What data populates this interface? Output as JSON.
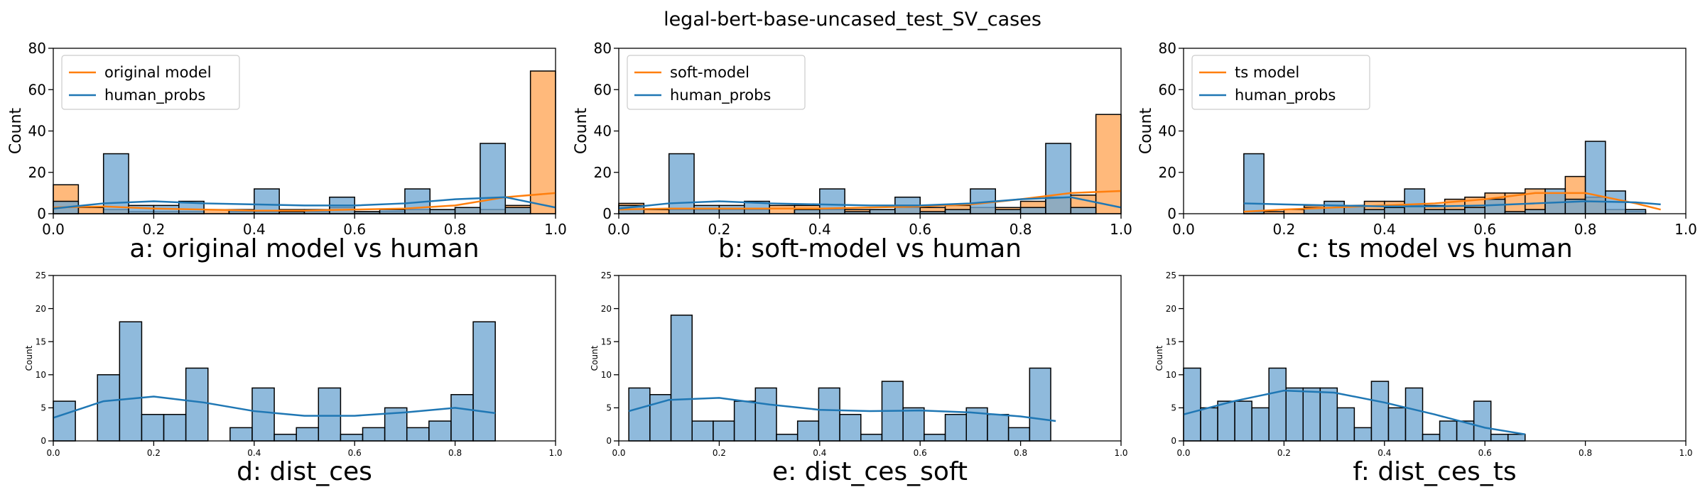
{
  "figure": {
    "title": "legal-bert-base-uncased_test_SV_cases"
  },
  "colors": {
    "human": "#1f77b4",
    "model": "#ff7f0e",
    "human_fill": "#6fa6d2",
    "model_fill": "#ffb574",
    "axis": "#000000"
  },
  "chart_data": [
    {
      "type": "bar",
      "panel": "a",
      "caption": "a: original model vs human",
      "xlabel": "",
      "ylabel": "Count",
      "xlim": [
        0,
        1
      ],
      "ylim": [
        0,
        80
      ],
      "xticks": [
        "0.0",
        "0.2",
        "0.4",
        "0.6",
        "0.8",
        "1.0"
      ],
      "yticks": [
        "0",
        "20",
        "40",
        "60",
        "80"
      ],
      "legend_position": "top-left",
      "legend": [
        "original model",
        "human_probs"
      ],
      "series": [
        {
          "name": "original model",
          "role": "model",
          "bins": [
            0,
            0.05,
            0.1,
            0.15,
            0.2,
            0.25,
            0.3,
            0.35,
            0.4,
            0.45,
            0.5,
            0.55,
            0.6,
            0.65,
            0.7,
            0.75,
            0.8,
            0.85,
            0.9,
            0.95,
            1.0
          ],
          "counts": [
            14,
            3,
            2,
            1,
            1,
            1,
            2,
            1,
            1,
            2,
            1,
            3,
            1,
            1,
            2,
            2,
            3,
            2,
            4,
            69
          ],
          "kde": {
            "x": [
              0,
              0.1,
              0.2,
              0.3,
              0.4,
              0.5,
              0.6,
              0.7,
              0.8,
              0.9,
              1.0
            ],
            "y": [
              3,
              3.5,
              2.5,
              2,
              1.5,
              1.5,
              2,
              2.5,
              4,
              8,
              10
            ]
          }
        },
        {
          "name": "human_probs",
          "role": "human",
          "bins": [
            0,
            0.05,
            0.1,
            0.15,
            0.2,
            0.25,
            0.3,
            0.35,
            0.4,
            0.45,
            0.5,
            0.55,
            0.6,
            0.65,
            0.7,
            0.75,
            0.8,
            0.85,
            0.9,
            0.95,
            1.0
          ],
          "counts": [
            6,
            0,
            29,
            4,
            4,
            6,
            0,
            2,
            12,
            1,
            2,
            8,
            1,
            2,
            12,
            2,
            3,
            34,
            3,
            0
          ],
          "kde": {
            "x": [
              0,
              0.1,
              0.2,
              0.3,
              0.4,
              0.5,
              0.6,
              0.7,
              0.8,
              0.9,
              1.0
            ],
            "y": [
              2.5,
              5,
              6,
              5,
              4.5,
              4,
              4,
              5,
              7,
              8,
              3
            ]
          }
        }
      ]
    },
    {
      "type": "bar",
      "panel": "b",
      "caption": "b: soft-model vs human",
      "xlabel": "",
      "ylabel": "Count",
      "xlim": [
        0,
        1
      ],
      "ylim": [
        0,
        80
      ],
      "xticks": [
        "0.0",
        "0.2",
        "0.4",
        "0.6",
        "0.8",
        "1.0"
      ],
      "yticks": [
        "0",
        "20",
        "40",
        "60",
        "80"
      ],
      "legend_position": "top-left",
      "legend": [
        "soft-model",
        "human_probs"
      ],
      "series": [
        {
          "name": "soft-model",
          "role": "model",
          "bins": [
            0,
            0.05,
            0.1,
            0.15,
            0.2,
            0.25,
            0.3,
            0.35,
            0.4,
            0.45,
            0.5,
            0.55,
            0.6,
            0.65,
            0.7,
            0.75,
            0.8,
            0.85,
            0.9,
            0.95,
            1.0
          ],
          "counts": [
            5,
            2,
            2,
            2,
            2,
            2,
            4,
            4,
            2,
            2,
            2,
            3,
            3,
            4,
            3,
            3,
            6,
            8,
            9,
            48
          ],
          "kde": {
            "x": [
              0,
              0.1,
              0.2,
              0.3,
              0.4,
              0.5,
              0.6,
              0.7,
              0.8,
              0.9,
              1.0
            ],
            "y": [
              2,
              2.5,
              2.5,
              2.5,
              2.5,
              3,
              3.5,
              4.5,
              7,
              10,
              11
            ]
          }
        },
        {
          "name": "human_probs",
          "role": "human",
          "bins": [
            0,
            0.05,
            0.1,
            0.15,
            0.2,
            0.25,
            0.3,
            0.35,
            0.4,
            0.45,
            0.5,
            0.55,
            0.6,
            0.65,
            0.7,
            0.75,
            0.8,
            0.85,
            0.9,
            0.95,
            1.0
          ],
          "counts": [
            4,
            0,
            29,
            4,
            4,
            6,
            0,
            2,
            12,
            1,
            2,
            8,
            1,
            2,
            12,
            2,
            3,
            34,
            3,
            0
          ],
          "kde": {
            "x": [
              0,
              0.1,
              0.2,
              0.3,
              0.4,
              0.5,
              0.6,
              0.7,
              0.8,
              0.9,
              1.0
            ],
            "y": [
              2.5,
              5,
              6,
              5,
              4.5,
              4,
              4,
              5,
              7,
              8,
              3
            ]
          }
        }
      ]
    },
    {
      "type": "bar",
      "panel": "c",
      "caption": "c: ts model vs human",
      "xlabel": "",
      "ylabel": "Count",
      "xlim": [
        0,
        1
      ],
      "ylim": [
        0,
        80
      ],
      "xticks": [
        "0.0",
        "0.2",
        "0.4",
        "0.6",
        "0.8",
        "1.0"
      ],
      "yticks": [
        "0",
        "20",
        "40",
        "60",
        "80"
      ],
      "legend_position": "top-left",
      "legend": [
        "ts model",
        "human_probs"
      ],
      "series": [
        {
          "name": "ts model",
          "role": "model",
          "bins": [
            0.12,
            0.16,
            0.2,
            0.24,
            0.28,
            0.32,
            0.36,
            0.4,
            0.44,
            0.48,
            0.52,
            0.56,
            0.6,
            0.64,
            0.68,
            0.72,
            0.76,
            0.8,
            0.84,
            0.88,
            0.92
          ],
          "counts": [
            1,
            1,
            2,
            4,
            3,
            4,
            6,
            6,
            4,
            4,
            7,
            8,
            10,
            10,
            12,
            10,
            18,
            8,
            2,
            1
          ],
          "kde": {
            "x": [
              0.12,
              0.2,
              0.3,
              0.4,
              0.5,
              0.6,
              0.7,
              0.8,
              0.9,
              0.95
            ],
            "y": [
              1,
              2,
              3,
              4,
              5,
              7,
              10,
              10,
              5,
              2
            ]
          }
        },
        {
          "name": "human_probs",
          "role": "human",
          "bins": [
            0.12,
            0.16,
            0.2,
            0.24,
            0.28,
            0.32,
            0.36,
            0.4,
            0.44,
            0.48,
            0.52,
            0.56,
            0.6,
            0.64,
            0.68,
            0.72,
            0.76,
            0.8,
            0.84,
            0.88,
            0.92
          ],
          "counts": [
            29,
            0,
            0,
            3,
            6,
            4,
            2,
            3,
            12,
            2,
            2,
            3,
            7,
            1,
            2,
            12,
            7,
            35,
            11,
            2
          ],
          "kde": {
            "x": [
              0.12,
              0.2,
              0.3,
              0.4,
              0.5,
              0.6,
              0.7,
              0.8,
              0.9,
              0.95
            ],
            "y": [
              5,
              4.5,
              4,
              3.5,
              3.5,
              4,
              5,
              6,
              5.5,
              4.5
            ]
          }
        }
      ]
    },
    {
      "type": "bar",
      "panel": "d",
      "caption": "d: dist_ces",
      "xlabel": "",
      "ylabel": "Count",
      "xlim": [
        0,
        1
      ],
      "ylim": [
        0,
        25
      ],
      "xticks": [
        "0.0",
        "0.2",
        "0.4",
        "0.6",
        "0.8",
        "1.0"
      ],
      "yticks": [
        "0",
        "5",
        "10",
        "15",
        "20",
        "25"
      ],
      "series": [
        {
          "name": "",
          "role": "human",
          "bins": [
            0,
            0.044,
            0.088,
            0.132,
            0.176,
            0.22,
            0.264,
            0.308,
            0.352,
            0.396,
            0.44,
            0.484,
            0.528,
            0.572,
            0.616,
            0.66,
            0.704,
            0.748,
            0.792,
            0.836,
            0.88
          ],
          "counts": [
            6,
            0,
            10,
            18,
            4,
            4,
            11,
            0,
            2,
            8,
            1,
            2,
            8,
            1,
            2,
            5,
            2,
            3,
            7,
            18
          ],
          "kde": {
            "x": [
              0,
              0.1,
              0.2,
              0.3,
              0.4,
              0.5,
              0.6,
              0.7,
              0.8,
              0.88
            ],
            "y": [
              3.5,
              6,
              6.7,
              5.8,
              4.5,
              3.8,
              3.8,
              4.3,
              5,
              4.2
            ]
          }
        }
      ]
    },
    {
      "type": "bar",
      "panel": "e",
      "caption": "e: dist_ces_soft",
      "xlabel": "",
      "ylabel": "Count",
      "xlim": [
        0,
        1
      ],
      "ylim": [
        0,
        25
      ],
      "xticks": [
        "0.0",
        "0.2",
        "0.4",
        "0.6",
        "0.8",
        "1.0"
      ],
      "yticks": [
        "0",
        "5",
        "10",
        "15",
        "20",
        "25"
      ],
      "series": [
        {
          "name": "",
          "role": "human",
          "bins": [
            0.02,
            0.062,
            0.104,
            0.146,
            0.188,
            0.23,
            0.272,
            0.314,
            0.356,
            0.398,
            0.44,
            0.482,
            0.524,
            0.566,
            0.608,
            0.65,
            0.692,
            0.734,
            0.776,
            0.818,
            0.86
          ],
          "counts": [
            8,
            7,
            19,
            3,
            3,
            6,
            8,
            1,
            3,
            8,
            4,
            1,
            9,
            5,
            1,
            4,
            5,
            4,
            2,
            11
          ],
          "kde": {
            "x": [
              0.02,
              0.1,
              0.2,
              0.3,
              0.4,
              0.5,
              0.6,
              0.7,
              0.8,
              0.87
            ],
            "y": [
              4.5,
              6.2,
              6.5,
              5.5,
              4.7,
              4.5,
              4.6,
              4.3,
              3.7,
              3
            ]
          }
        }
      ]
    },
    {
      "type": "bar",
      "panel": "f",
      "caption": "f: dist_ces_ts",
      "xlabel": "",
      "ylabel": "Count",
      "xlim": [
        0,
        1
      ],
      "ylim": [
        0,
        25
      ],
      "xticks": [
        "0.0",
        "0.2",
        "0.4",
        "0.6",
        "0.8",
        "1.0"
      ],
      "yticks": [
        "0",
        "5",
        "10",
        "15",
        "20",
        "25"
      ],
      "series": [
        {
          "name": "",
          "role": "human",
          "bins": [
            0,
            0.034,
            0.068,
            0.102,
            0.136,
            0.17,
            0.204,
            0.238,
            0.272,
            0.306,
            0.34,
            0.374,
            0.408,
            0.442,
            0.476,
            0.51,
            0.544,
            0.578,
            0.612,
            0.646,
            0.68
          ],
          "counts": [
            11,
            5,
            6,
            6,
            5,
            11,
            8,
            8,
            8,
            5,
            2,
            9,
            5,
            8,
            1,
            3,
            3,
            6,
            1,
            1
          ],
          "kde": {
            "x": [
              0,
              0.1,
              0.2,
              0.3,
              0.4,
              0.5,
              0.6,
              0.68
            ],
            "y": [
              4,
              6,
              7.6,
              7.3,
              5.8,
              4,
              2,
              1
            ]
          }
        }
      ]
    }
  ]
}
